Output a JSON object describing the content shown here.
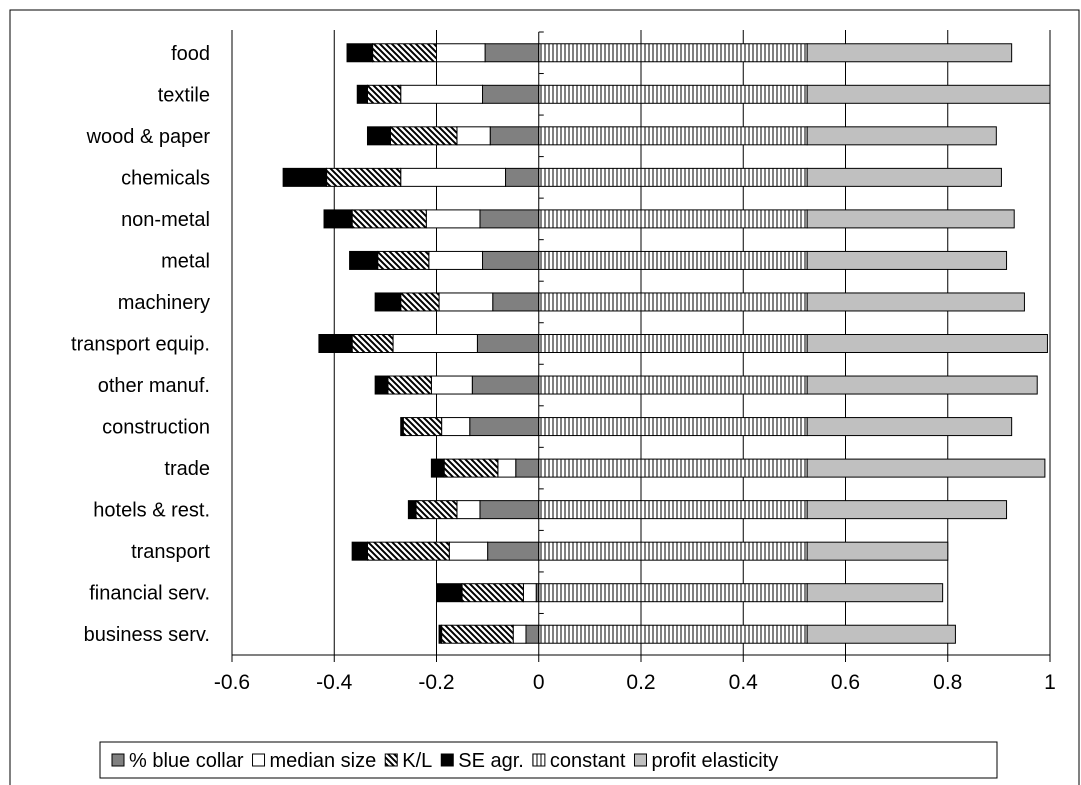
{
  "chart_data": {
    "type": "bar",
    "stacked": true,
    "orientation": "horizontal",
    "categories": [
      "food",
      "textile",
      "wood & paper",
      "chemicals",
      "non-metal",
      "metal",
      "machinery",
      "transport equip.",
      "other manuf.",
      "construction",
      "trade",
      "hotels & rest.",
      "transport",
      "financial serv.",
      "business serv."
    ],
    "series": [
      {
        "name": "% blue collar",
        "color": "#808080",
        "pattern": "solid",
        "values": [
          -0.105,
          -0.11,
          -0.095,
          -0.065,
          -0.115,
          -0.11,
          -0.09,
          -0.12,
          -0.13,
          -0.135,
          -0.045,
          -0.115,
          -0.1,
          -0.005,
          -0.025
        ]
      },
      {
        "name": "median size",
        "color": "#ffffff",
        "pattern": "solid",
        "values": [
          -0.095,
          -0.16,
          -0.065,
          -0.205,
          -0.105,
          -0.105,
          -0.105,
          -0.165,
          -0.08,
          -0.055,
          -0.035,
          -0.045,
          -0.075,
          -0.025,
          -0.025
        ]
      },
      {
        "name": "K/L",
        "color": "#ffffff",
        "pattern": "diagonal",
        "values": [
          -0.125,
          -0.065,
          -0.13,
          -0.145,
          -0.145,
          -0.1,
          -0.075,
          -0.08,
          -0.085,
          -0.075,
          -0.105,
          -0.08,
          -0.16,
          -0.12,
          -0.14
        ]
      },
      {
        "name": "SE agr.",
        "color": "#000000",
        "pattern": "solid",
        "values": [
          -0.05,
          -0.02,
          -0.045,
          -0.085,
          -0.055,
          -0.055,
          -0.05,
          -0.065,
          -0.025,
          -0.005,
          -0.025,
          -0.015,
          -0.03,
          -0.05,
          -0.005
        ]
      },
      {
        "name": "constant",
        "color": "#ffffff",
        "pattern": "vertical",
        "values": [
          0.525,
          0.525,
          0.525,
          0.525,
          0.525,
          0.525,
          0.525,
          0.525,
          0.525,
          0.525,
          0.525,
          0.525,
          0.525,
          0.525,
          0.525
        ]
      },
      {
        "name": "profit elasticity",
        "color": "#c0c0c0",
        "pattern": "solid",
        "values": [
          0.4,
          0.475,
          0.37,
          0.38,
          0.405,
          0.39,
          0.425,
          0.47,
          0.45,
          0.4,
          0.465,
          0.39,
          0.275,
          0.265,
          0.29
        ]
      }
    ],
    "xlim": [
      -0.6,
      1
    ],
    "xticks": [
      "-0.6",
      "-0.4",
      "-0.2",
      "0",
      "0.2",
      "0.4",
      "0.6",
      "0.8",
      "1"
    ],
    "gridlines": "vertical major",
    "legend": "bottom"
  }
}
